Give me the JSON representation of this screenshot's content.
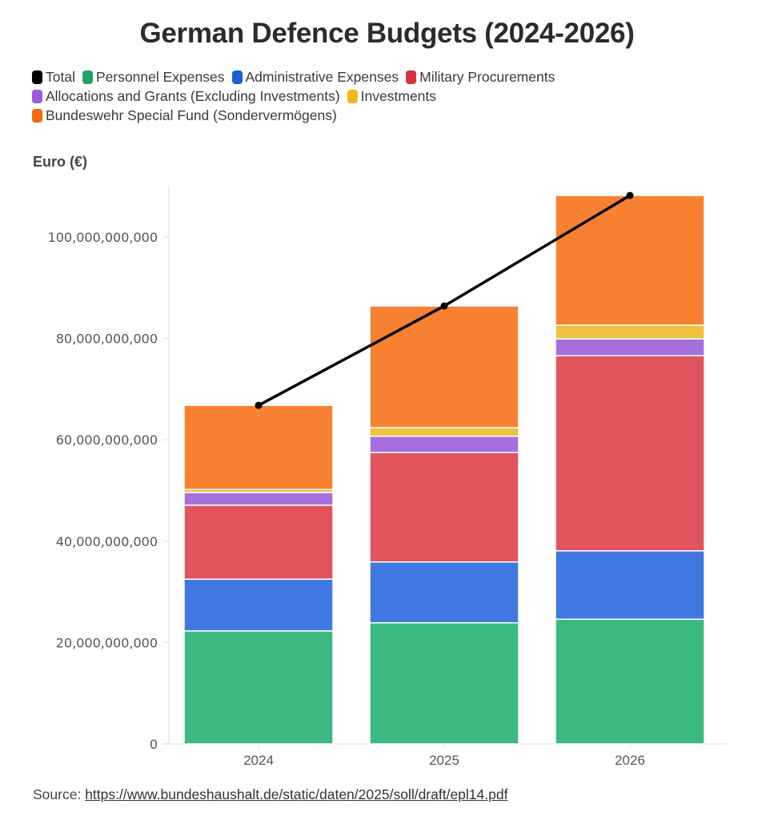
{
  "chart_data": {
    "type": "bar",
    "stacked": true,
    "title": "German Defence Budgets (2024-2026)",
    "ylabel": "Euro (€)",
    "xlabel": "",
    "ylim": [
      0,
      110000000000
    ],
    "yticks": [
      0,
      20000000000,
      40000000000,
      60000000000,
      80000000000,
      100000000000
    ],
    "ytick_labels": [
      "0",
      "20,000,000,000",
      "40,000,000,000",
      "60,000,000,000",
      "80,000,000,000",
      "100,000,000,000"
    ],
    "grid": false,
    "legend_position": "top-left",
    "categories": [
      "2024",
      "2025",
      "2026"
    ],
    "series": [
      {
        "name": "Personnel Expenses",
        "color": "#3bba82",
        "values": [
          22300000000,
          23900000000,
          24600000000
        ]
      },
      {
        "name": "Administrative Expenses",
        "color": "#3f78e0",
        "values": [
          10200000000,
          12000000000,
          13500000000
        ]
      },
      {
        "name": "Military Procurements",
        "color": "#e1545c",
        "values": [
          14600000000,
          21600000000,
          38500000000
        ]
      },
      {
        "name": "Allocations and Grants (Excluding Investments)",
        "color": "#a66fdc",
        "values": [
          2500000000,
          3200000000,
          3300000000
        ]
      },
      {
        "name": "Investments",
        "color": "#f1c240",
        "values": [
          600000000,
          1700000000,
          2700000000
        ]
      },
      {
        "name": "Bundeswehr Special Fund (Sondervermögens)",
        "color": "#f88131",
        "values": [
          16600000000,
          24000000000,
          25600000000
        ]
      }
    ],
    "line_series": {
      "name": "Total",
      "color": "#000000",
      "values": [
        66800000000,
        86400000000,
        108200000000
      ]
    }
  },
  "legend": {
    "items": [
      {
        "label": "Total",
        "color": "#000000"
      },
      {
        "label": "Personnel Expenses",
        "color": "#21a366"
      },
      {
        "label": "Administrative Expenses",
        "color": "#1a5fd8"
      },
      {
        "label": "Military Procurements",
        "color": "#d9303a"
      },
      {
        "label": "Allocations and Grants (Excluding Investments)",
        "color": "#9b59d9"
      },
      {
        "label": "Investments",
        "color": "#f0b818"
      },
      {
        "label": "Bundeswehr Special Fund (Sondervermögens)",
        "color": "#f26a10"
      }
    ]
  },
  "source": {
    "prefix": "Source:",
    "link_text": "https://www.bundeshaushalt.de/static/daten/2025/soll/draft/epl14.pdf"
  }
}
